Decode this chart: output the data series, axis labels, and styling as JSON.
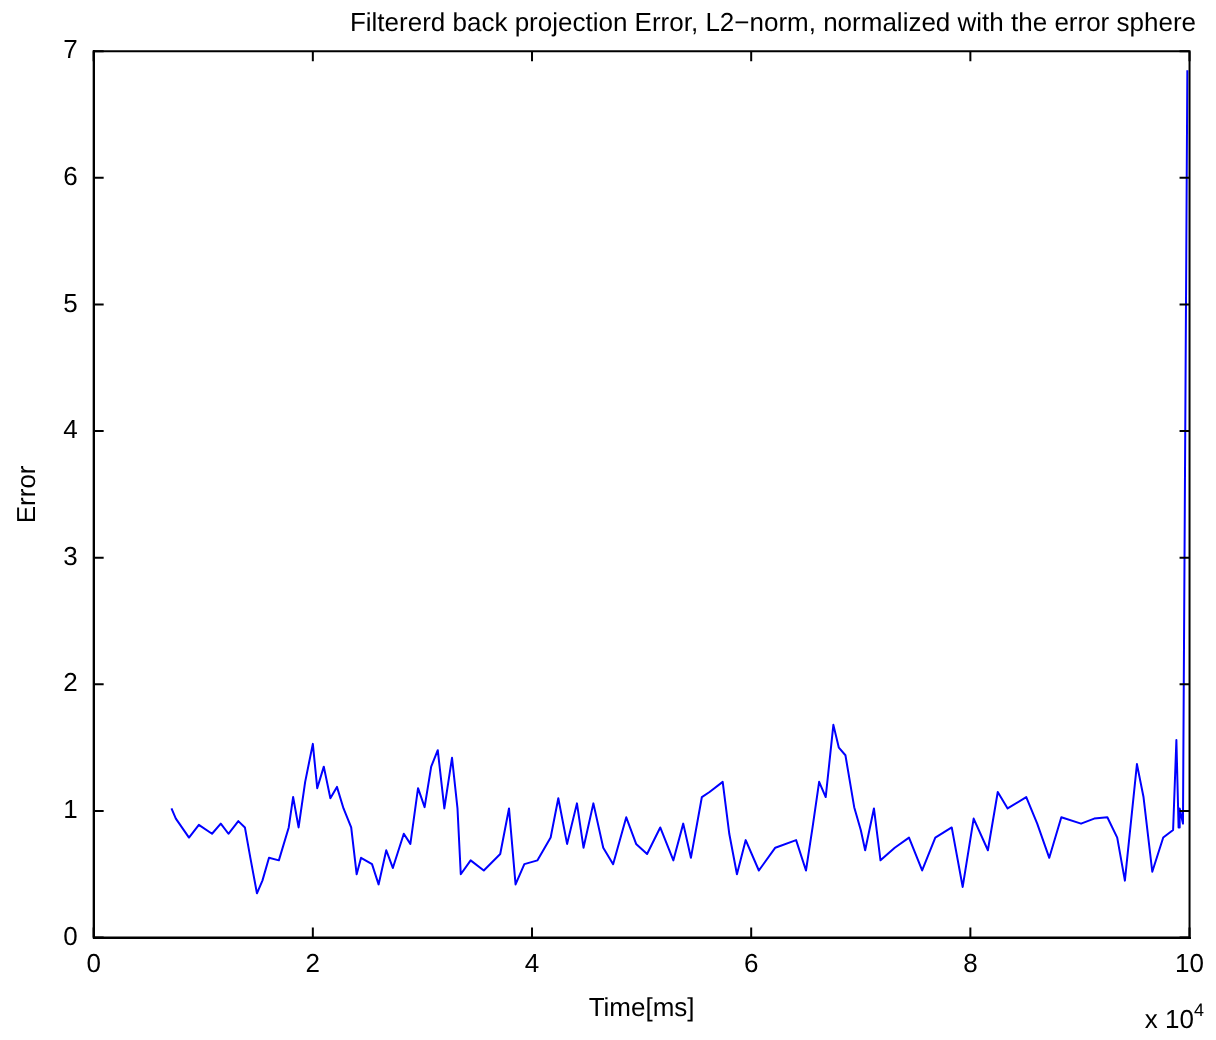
{
  "chart_data": {
    "type": "line",
    "title": "Filtererd back projection Error, L2−norm, normalized with the error sphere",
    "xlabel": "Time[ms]",
    "ylabel": "Error",
    "annotations": [
      "x 10$^{4}$"
    ],
    "xlim": [
      0,
      10
    ],
    "ylim": [
      0,
      7
    ],
    "xticks": [
      0,
      2,
      4,
      6,
      8,
      10
    ],
    "yticks": [
      0,
      1,
      2,
      3,
      4,
      5,
      6,
      7
    ],
    "grid": false,
    "legend": false,
    "marker": "none",
    "line_style": "solid",
    "series": [
      {
        "color": "#0000ff",
        "x": [
          0.71,
          0.75,
          0.87,
          0.96,
          1.08,
          1.16,
          1.23,
          1.32,
          1.38,
          1.43,
          1.49,
          1.54,
          1.6,
          1.69,
          1.78,
          1.82,
          1.87,
          1.93,
          2.0,
          2.04,
          2.1,
          2.16,
          2.22,
          2.28,
          2.35,
          2.4,
          2.44,
          2.54,
          2.6,
          2.67,
          2.73,
          2.83,
          2.89,
          2.96,
          3.02,
          3.08,
          3.14,
          3.2,
          3.27,
          3.32,
          3.35,
          3.44,
          3.56,
          3.71,
          3.79,
          3.85,
          3.93,
          4.05,
          4.17,
          4.24,
          4.32,
          4.41,
          4.47,
          4.56,
          4.65,
          4.74,
          4.86,
          4.95,
          5.05,
          5.17,
          5.29,
          5.38,
          5.45,
          5.55,
          5.62,
          5.74,
          5.8,
          5.87,
          5.95,
          6.07,
          6.22,
          6.41,
          6.5,
          6.56,
          6.62,
          6.68,
          6.75,
          6.8,
          6.86,
          6.94,
          7.0,
          7.04,
          7.12,
          7.18,
          7.31,
          7.44,
          7.56,
          7.68,
          7.83,
          7.93,
          8.03,
          8.16,
          8.25,
          8.34,
          8.51,
          8.61,
          8.72,
          8.83,
          9.01,
          9.13,
          9.25,
          9.34,
          9.41,
          9.52,
          9.58,
          9.66,
          9.76,
          9.85,
          9.88,
          9.9,
          9.91,
          9.94,
          9.98
        ],
        "values": [
          1.02,
          0.94,
          0.79,
          0.89,
          0.82,
          0.9,
          0.82,
          0.92,
          0.87,
          0.63,
          0.35,
          0.45,
          0.63,
          0.61,
          0.87,
          1.11,
          0.87,
          1.23,
          1.53,
          1.18,
          1.35,
          1.1,
          1.19,
          1.02,
          0.87,
          0.5,
          0.63,
          0.58,
          0.42,
          0.69,
          0.55,
          0.82,
          0.74,
          1.18,
          1.03,
          1.35,
          1.48,
          1.02,
          1.42,
          1.02,
          0.5,
          0.61,
          0.53,
          0.66,
          1.02,
          0.42,
          0.58,
          0.61,
          0.79,
          1.1,
          0.74,
          1.06,
          0.71,
          1.06,
          0.71,
          0.58,
          0.95,
          0.74,
          0.66,
          0.87,
          0.61,
          0.9,
          0.63,
          1.11,
          1.15,
          1.23,
          0.82,
          0.5,
          0.77,
          0.53,
          0.71,
          0.77,
          0.53,
          0.87,
          1.23,
          1.11,
          1.68,
          1.5,
          1.44,
          1.03,
          0.85,
          0.69,
          1.02,
          0.61,
          0.71,
          0.79,
          0.53,
          0.79,
          0.87,
          0.4,
          0.94,
          0.69,
          1.15,
          1.02,
          1.11,
          0.9,
          0.63,
          0.95,
          0.9,
          0.94,
          0.95,
          0.79,
          0.45,
          1.37,
          1.11,
          0.52,
          0.79,
          0.85,
          1.56,
          0.87,
          1.02,
          0.9,
          6.85
        ]
      }
    ]
  }
}
